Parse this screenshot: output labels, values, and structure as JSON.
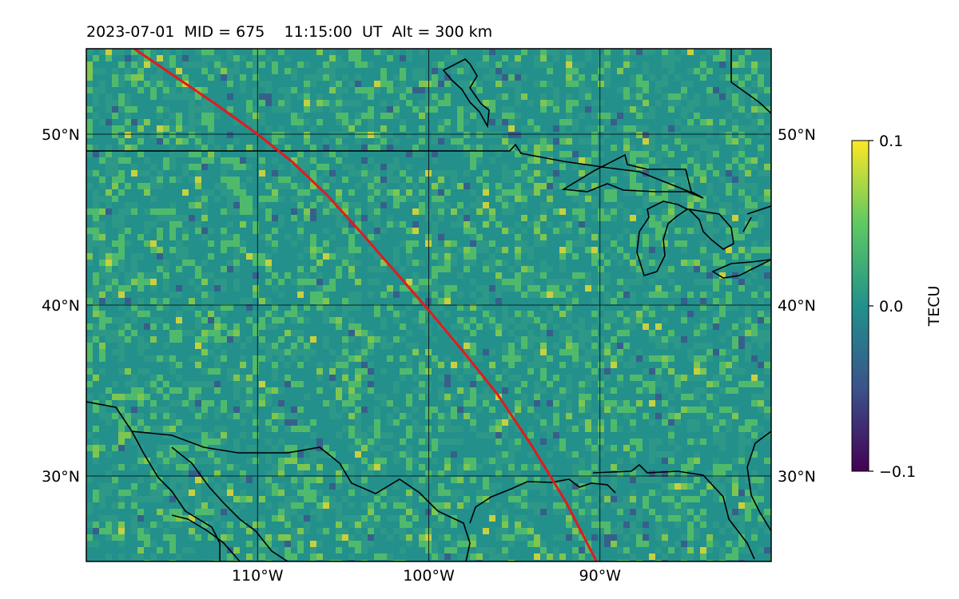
{
  "title": "2023-07-01  MID = 675    11:15:00  UT  Alt = 300 km",
  "map": {
    "lon_range": [
      -120,
      -80
    ],
    "lat_range": [
      25,
      55
    ],
    "lat_ticks": [
      {
        "value": 30,
        "label": "30°N"
      },
      {
        "value": 40,
        "label": "40°N"
      },
      {
        "value": 50,
        "label": "50°N"
      }
    ],
    "lon_ticks": [
      {
        "value": -110,
        "label": "110°W"
      },
      {
        "value": -100,
        "label": "100°W"
      },
      {
        "value": -90,
        "label": "90°W"
      }
    ],
    "grid": true,
    "track_color": "#e31a1c",
    "track_points": [
      [
        -117.2,
        55
      ],
      [
        -115,
        53.5
      ],
      [
        -112.5,
        51.8
      ],
      [
        -110,
        50
      ],
      [
        -108,
        48.4
      ],
      [
        -106,
        46.5
      ],
      [
        -104,
        44.3
      ],
      [
        -102,
        42
      ],
      [
        -100,
        39.7
      ],
      [
        -98,
        37.3
      ],
      [
        -96,
        34.8
      ],
      [
        -94,
        31.8
      ],
      [
        -92,
        28.5
      ],
      [
        -90.2,
        25
      ]
    ],
    "field_colors": [
      "#440154",
      "#3b528b",
      "#21918c",
      "#5ec962",
      "#fde725"
    ]
  },
  "colorbar": {
    "label": "TECU",
    "min": -0.1,
    "max": 0.1,
    "ticks": [
      {
        "value": 0.1,
        "label": "0.1"
      },
      {
        "value": 0.0,
        "label": "0.0"
      },
      {
        "value": -0.1,
        "label": "−0.1"
      }
    ],
    "colormap": "viridis"
  }
}
